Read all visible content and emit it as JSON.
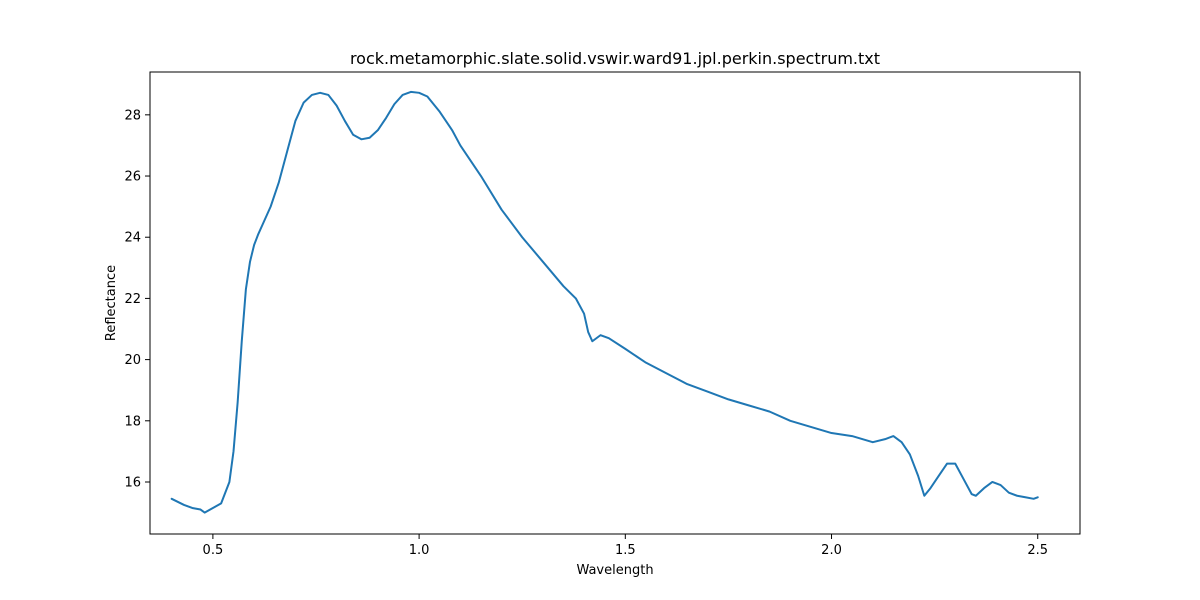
{
  "chart_data": {
    "type": "line",
    "title": "rock.metamorphic.slate.solid.vswir.ward91.jpl.perkin.spectrum.txt",
    "xlabel": "Wavelength",
    "ylabel": "Reflectance",
    "xlim": [
      0.3475,
      2.6025
    ],
    "ylim": [
      14.3,
      29.4
    ],
    "xticks": [
      0.5,
      1.0,
      1.5,
      2.0,
      2.5
    ],
    "xtick_labels": [
      "0.5",
      "1.0",
      "1.5",
      "2.0",
      "2.5"
    ],
    "yticks": [
      16,
      18,
      20,
      22,
      24,
      26,
      28
    ],
    "ytick_labels": [
      "16",
      "18",
      "20",
      "22",
      "24",
      "26",
      "28"
    ],
    "grid": false,
    "line_color": "#1f77b4",
    "series": [
      {
        "x": [
          0.4,
          0.43,
          0.45,
          0.47,
          0.48,
          0.5,
          0.52,
          0.54,
          0.55,
          0.56,
          0.57,
          0.58,
          0.59,
          0.6,
          0.61,
          0.62,
          0.64,
          0.66,
          0.68,
          0.7,
          0.72,
          0.74,
          0.76,
          0.78,
          0.8,
          0.82,
          0.84,
          0.86,
          0.88,
          0.9,
          0.92,
          0.94,
          0.96,
          0.98,
          1.0,
          1.02,
          1.05,
          1.08,
          1.1,
          1.15,
          1.2,
          1.25,
          1.3,
          1.35,
          1.38,
          1.4,
          1.41,
          1.42,
          1.44,
          1.46,
          1.5,
          1.55,
          1.6,
          1.65,
          1.7,
          1.75,
          1.8,
          1.85,
          1.9,
          1.95,
          2.0,
          2.05,
          2.1,
          2.13,
          2.15,
          2.17,
          2.19,
          2.21,
          2.225,
          2.24,
          2.26,
          2.28,
          2.3,
          2.32,
          2.34,
          2.35,
          2.37,
          2.39,
          2.41,
          2.43,
          2.45,
          2.47,
          2.49,
          2.5
        ],
        "y": [
          15.45,
          15.25,
          15.15,
          15.1,
          15.0,
          15.15,
          15.3,
          16.0,
          17.0,
          18.6,
          20.6,
          22.3,
          23.2,
          23.75,
          24.1,
          24.4,
          25.0,
          25.8,
          26.8,
          27.8,
          28.4,
          28.65,
          28.72,
          28.65,
          28.3,
          27.8,
          27.35,
          27.2,
          27.25,
          27.5,
          27.9,
          28.35,
          28.65,
          28.75,
          28.72,
          28.6,
          28.1,
          27.5,
          27.0,
          26.0,
          24.9,
          24.0,
          23.2,
          22.4,
          22.0,
          21.5,
          20.9,
          20.6,
          20.8,
          20.7,
          20.35,
          19.9,
          19.55,
          19.2,
          18.95,
          18.7,
          18.5,
          18.3,
          18.0,
          17.8,
          17.6,
          17.5,
          17.3,
          17.4,
          17.5,
          17.3,
          16.9,
          16.2,
          15.55,
          15.8,
          16.2,
          16.6,
          16.6,
          16.1,
          15.6,
          15.55,
          15.8,
          16.0,
          15.9,
          15.65,
          15.55,
          15.5,
          15.45,
          15.5
        ]
      }
    ]
  }
}
